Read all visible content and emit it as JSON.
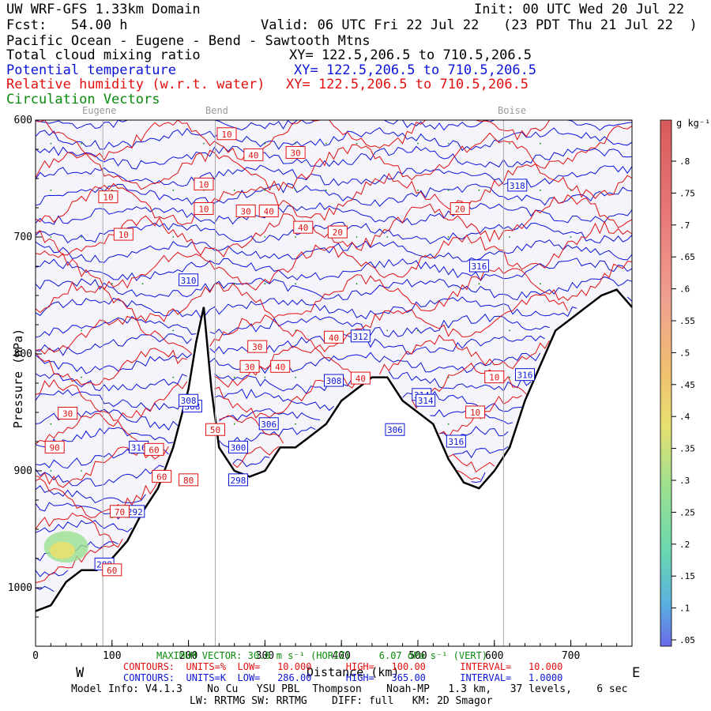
{
  "header": {
    "title": "UW WRF-GFS 1.33km Domain",
    "init": "Init: 00 UTC Wed 20 Jul 22",
    "fcst": "Fcst:   54.00 h",
    "valid": "Valid: 06 UTC Fri 22 Jul 22   (23 PDT Thu 21 Jul 22  )",
    "region": "Pacific Ocean - Eugene - Bend - Sawtooth Mtns",
    "field1": "Total cloud mixing ratio",
    "field1_xy": "XY= 122.5,206.5 to 710.5,206.5",
    "field2": "Potential temperature",
    "field2_xy": "XY= 122.5,206.5 to 710.5,206.5",
    "field3": "Relative humidity (w.r.t. water)",
    "field3_xy": "XY= 122.5,206.5 to 710.5,206.5",
    "field4": "Circulation Vectors"
  },
  "places": [
    "Eugene",
    "Bend",
    "Boise"
  ],
  "colors": {
    "potential_temperature": "#0a14d8",
    "relative_humidity": "#e01010",
    "vectors": "#0a8a0a",
    "terrain": "#000000"
  },
  "chart_data": {
    "type": "cross-section",
    "xlabel": "Distance (km)",
    "ylabel": "Pressure (hPa)",
    "x_ticks": [
      "0",
      "100",
      "200",
      "300",
      "400",
      "500",
      "600",
      "700"
    ],
    "y_ticks": [
      "600",
      "700",
      "800",
      "900",
      "1000"
    ],
    "xlim": [
      0,
      780
    ],
    "ylim": [
      1050,
      600
    ],
    "x_end_labels": {
      "left": "W",
      "right": "E"
    },
    "terrain_profile": {
      "x": [
        0,
        20,
        40,
        60,
        80,
        100,
        120,
        140,
        160,
        180,
        200,
        210,
        220,
        230,
        240,
        260,
        280,
        300,
        320,
        340,
        360,
        380,
        400,
        420,
        440,
        460,
        480,
        500,
        520,
        540,
        560,
        580,
        600,
        620,
        640,
        660,
        680,
        700,
        720,
        740,
        760,
        780
      ],
      "p": [
        1020,
        1015,
        995,
        985,
        985,
        975,
        960,
        935,
        915,
        880,
        830,
        790,
        760,
        830,
        880,
        900,
        905,
        900,
        880,
        880,
        870,
        860,
        840,
        830,
        820,
        820,
        840,
        850,
        860,
        890,
        910,
        915,
        900,
        880,
        840,
        810,
        780,
        770,
        760,
        750,
        745,
        760
      ]
    },
    "theta_labels": [
      "316",
      "318",
      "316",
      "310",
      "312",
      "308",
      "308",
      "308",
      "306",
      "306",
      "300",
      "298",
      "292",
      "288",
      "314",
      "314",
      "316",
      "316"
    ],
    "rh_labels": [
      "10",
      "10",
      "10",
      "10",
      "10",
      "10",
      "10",
      "20",
      "20",
      "30",
      "30",
      "30",
      "30",
      "30",
      "40",
      "40",
      "40",
      "40",
      "40",
      "40",
      "50",
      "60",
      "60",
      "60",
      "70",
      "80",
      "90"
    ],
    "colorbar": {
      "units": "g kg⁻¹",
      "labels": [
        ".8",
        ".75",
        ".7",
        ".65",
        ".6",
        ".55",
        ".5",
        ".45",
        ".4",
        ".35",
        ".3",
        ".25",
        ".2",
        ".15",
        ".1",
        ".05"
      ]
    }
  },
  "footer": {
    "max_vector": "MAXIMUM VECTOR: 30.0 m s⁻¹ (HORIZ)     6.07 dPa s⁻¹ (VERT)",
    "contours_rh": "CONTOURS:  UNITS=%  LOW=   10.000      HIGH=   100.00      INTERVAL=   10.000",
    "contours_theta": "CONTOURS:  UNITS=K  LOW=   286.00      HIGH=   365.00      INTERVAL=   1.0000",
    "model_info": "Model Info: V4.1.3    No Cu   YSU PBL  Thompson    Noah-MP   1.3 km,   37 levels,    6 sec",
    "model_info2": "LW: RRTMG SW: RRTMG    DIFF: full   KM: 2D Smagor"
  }
}
